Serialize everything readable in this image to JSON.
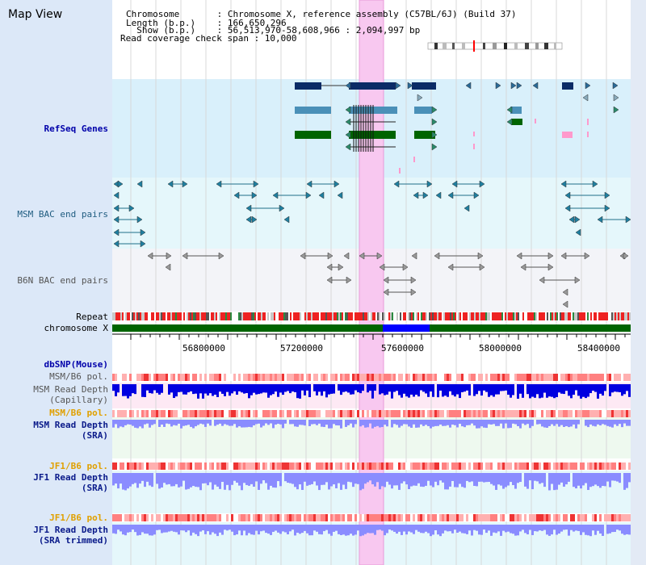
{
  "header": {
    "title": "Map View",
    "lines": [
      "Chromosome       : Chromosome X, reference assembly (C57BL/6J) (Build 37)",
      "Length (b.p.)    : 166,650,296",
      "  Show (b.p.)    : 56,513,970-58,608,966 : 2,094,997 bp",
      "Read coverage check span : 10,000"
    ]
  },
  "tracks": {
    "refseq": "RefSeq Genes",
    "msm_bac": "MSM BAC end pairs",
    "b6n_bac": "B6N BAC end pairs",
    "repeat": "Repeat",
    "chromosome": "chromosome X",
    "dbsnp": "dbSNP(Mouse)",
    "msm_b6_pol_1": "MSM/B6 pol.",
    "msm_read_depth_cap_a": "MSM Read Depth",
    "msm_read_depth_cap_b": "(Capillary)",
    "msm_b6_pol_2": "MSM/B6 pol.",
    "msm_read_depth_sra_a": "MSM Read Depth",
    "msm_read_depth_sra_b": "(SRA)",
    "jf1_b6_pol_1": "JF1/B6 pol.",
    "jf1_read_depth_sra_a": "JF1 Read Depth",
    "jf1_read_depth_sra_b": "(SRA)",
    "jf1_b6_pol_2": "JF1/B6 pol.",
    "jf1_read_depth_trim_a": "JF1 Read Depth",
    "jf1_read_depth_trim_b": "(SRA trimmed)"
  },
  "axis": {
    "ticks": [
      "56800000",
      "57200000",
      "57600000",
      "58000000",
      "58400000"
    ]
  },
  "colors": {
    "highlight": "#f8c8f0",
    "gene_navy": "#0b2b66",
    "gene_steel": "#4a90b8",
    "gene_green": "#006400",
    "chrom_green": "#006400",
    "chrom_blue": "#0000ff",
    "depth_blue_dark": "#0000e0",
    "depth_blue_light": "#8a8cff",
    "pol_red": "#ff6060"
  }
}
